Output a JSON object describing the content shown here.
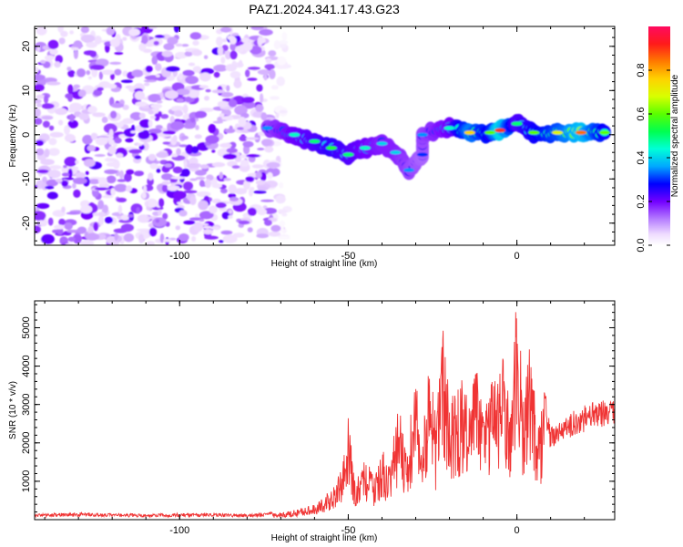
{
  "title": "PAZ1.2024.341.17.43.G23",
  "chart_data": [
    {
      "type": "heatmap",
      "xlabel": "Height of straight line (km)",
      "ylabel": "Frequency (Hz)",
      "xlim": [
        -143,
        29
      ],
      "ylim": [
        -25,
        24.5
      ],
      "xticks": [
        -100,
        -50,
        0
      ],
      "yticks": [
        -20,
        -10,
        0,
        10,
        20
      ],
      "colorbar": {
        "label": "Normalized spectral amplitude",
        "range": [
          0,
          1
        ],
        "ticks": [
          "0.0",
          "0.2",
          "0.4",
          "0.6",
          "0.8"
        ]
      },
      "noise_region_x": [
        -143,
        -68
      ],
      "signal_ridge": [
        {
          "x": -74,
          "y": 1.5,
          "a": 0.35
        },
        {
          "x": -66,
          "y": 0.0,
          "a": 0.45
        },
        {
          "x": -60,
          "y": -1.5,
          "a": 0.5
        },
        {
          "x": -55,
          "y": -3.0,
          "a": 0.55
        },
        {
          "x": -50,
          "y": -4.5,
          "a": 0.5
        },
        {
          "x": -45,
          "y": -3.0,
          "a": 0.45
        },
        {
          "x": -40,
          "y": -2.0,
          "a": 0.4
        },
        {
          "x": -36,
          "y": -4.0,
          "a": 0.4
        },
        {
          "x": -32,
          "y": -8.0,
          "a": 0.35
        },
        {
          "x": -28,
          "y": -4.5,
          "a": 0.3
        },
        {
          "x": -28,
          "y": 0.0,
          "a": 0.35
        },
        {
          "x": -20,
          "y": 1.5,
          "a": 0.45
        },
        {
          "x": -14,
          "y": 0.5,
          "a": 0.75
        },
        {
          "x": -8,
          "y": 0.5,
          "a": 0.6
        },
        {
          "x": -5,
          "y": 1.0,
          "a": 0.9
        },
        {
          "x": 0,
          "y": 2.5,
          "a": 0.5
        },
        {
          "x": 5,
          "y": 0.5,
          "a": 0.6
        },
        {
          "x": 12,
          "y": 0.5,
          "a": 0.7
        },
        {
          "x": 19,
          "y": 0.5,
          "a": 0.85
        },
        {
          "x": 26,
          "y": 0.5,
          "a": 0.6
        }
      ]
    },
    {
      "type": "line",
      "xlabel": "Height of straight line (km)",
      "ylabel": "SNR (10 * v/v)",
      "xlim": [
        -143,
        29
      ],
      "ylim": [
        0,
        5700
      ],
      "xticks": [
        -100,
        -50,
        0
      ],
      "yticks": [
        1000,
        2000,
        3000,
        4000,
        5000
      ],
      "color": "#f03434",
      "series": [
        {
          "x": [
            -143,
            -130,
            -120,
            -110,
            -100,
            -90,
            -80,
            -75,
            -70,
            -65,
            -60,
            -57,
            -55,
            -52,
            -50,
            -48,
            -45,
            -42,
            -40,
            -38,
            -35,
            -33,
            -30,
            -28,
            -26,
            -24,
            -22,
            -20,
            -18,
            -16,
            -14,
            -12,
            -10,
            -8,
            -6,
            -4,
            -2,
            0,
            2,
            4,
            6,
            8,
            10,
            12,
            15,
            18,
            21,
            24,
            27,
            29
          ],
          "y": [
            120,
            150,
            130,
            120,
            140,
            130,
            120,
            140,
            170,
            260,
            390,
            600,
            800,
            1300,
            2600,
            900,
            1500,
            1100,
            1800,
            1300,
            3100,
            1600,
            3700,
            2000,
            4000,
            2500,
            4900,
            3000,
            3200,
            3800,
            2700,
            4300,
            2800,
            3600,
            3400,
            5000,
            2800,
            5700,
            3000,
            4600,
            2500,
            3400,
            2200,
            2400,
            2500,
            2700,
            2800,
            2900,
            3000,
            3000
          ]
        }
      ]
    }
  ]
}
